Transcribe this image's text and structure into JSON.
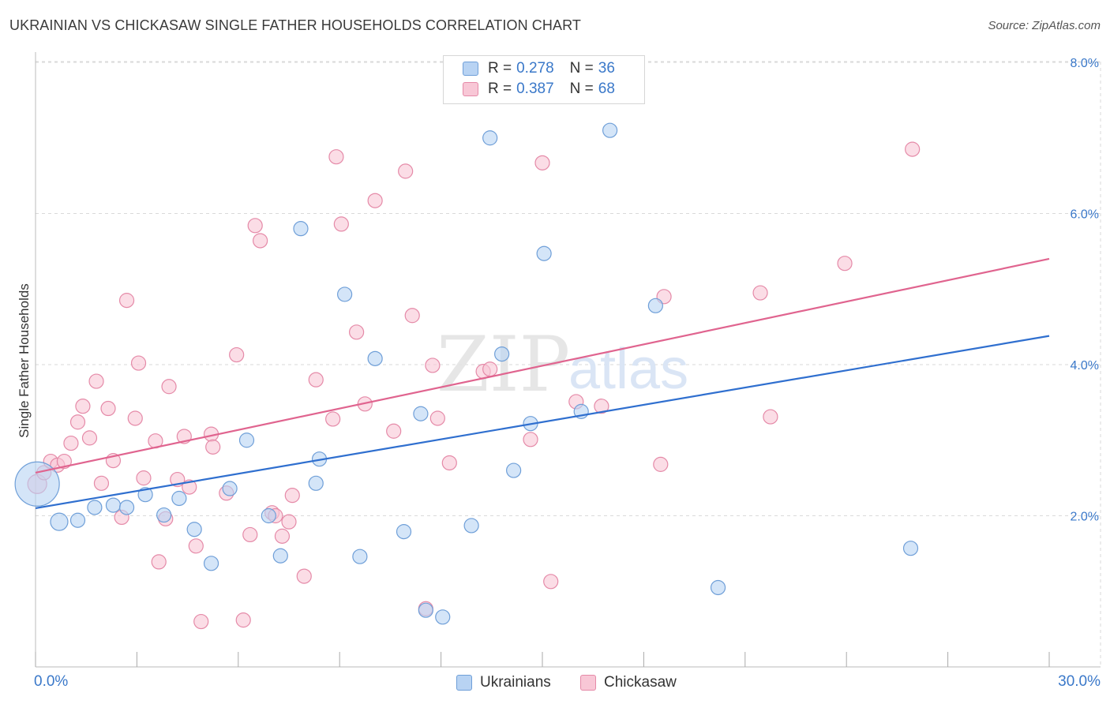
{
  "title": "UKRAINIAN VS CHICKASAW SINGLE FATHER HOUSEHOLDS CORRELATION CHART",
  "source": "Source: ZipAtlas.com",
  "legend_top": [
    {
      "r_label": "R =",
      "r_value": "0.278",
      "n_label": "N =",
      "n_value": "36"
    },
    {
      "r_label": "R =",
      "r_value": "0.387",
      "n_label": "N =",
      "n_value": "68"
    }
  ],
  "legend_bottom": [
    "Ukrainians",
    "Chickasaw"
  ],
  "colors": {
    "ukrainians_fill": "#b8d3f3",
    "ukrainians_stroke": "#6f9fd8",
    "ukrainians_line": "#2f6fcf",
    "chickasaw_fill": "#f8c7d6",
    "chickasaw_stroke": "#e58aa8",
    "chickasaw_line": "#e0648f",
    "axis_text": "#3a78c9",
    "grid": "#d9d9d9"
  },
  "chart_data": {
    "type": "scatter",
    "title": "UKRAINIAN VS CHICKASAW SINGLE FATHER HOUSEHOLDS CORRELATION CHART",
    "xlabel": "",
    "ylabel": "Single Father Households",
    "xlim": [
      0,
      30
    ],
    "ylim": [
      0,
      8.2
    ],
    "x_tick_labels": [
      "0.0%",
      "30.0%"
    ],
    "y_ticks": [
      2,
      4,
      6,
      8
    ],
    "y_tick_labels": [
      "2.0%",
      "4.0%",
      "6.0%",
      "8.0%"
    ],
    "grid": true,
    "legend_position": "top-center",
    "watermark": "ZIPatlas",
    "series": [
      {
        "name": "Ukrainians",
        "r": 0.278,
        "n": 36,
        "trend": {
          "x": [
            0,
            30
          ],
          "y": [
            2.1,
            4.38
          ]
        },
        "points": [
          [
            0.05,
            2.42,
            28
          ],
          [
            0.7,
            1.92,
            11
          ],
          [
            1.25,
            1.94,
            9
          ],
          [
            1.75,
            2.11,
            9
          ],
          [
            2.3,
            2.14,
            9
          ],
          [
            2.7,
            2.11,
            9
          ],
          [
            3.25,
            2.28,
            9
          ],
          [
            3.8,
            2.01,
            9
          ],
          [
            4.25,
            2.23,
            9
          ],
          [
            4.7,
            1.82,
            9
          ],
          [
            5.2,
            1.37,
            9
          ],
          [
            5.75,
            2.36,
            9
          ],
          [
            6.25,
            3.0,
            9
          ],
          [
            6.9,
            2.0,
            9
          ],
          [
            7.25,
            1.47,
            9
          ],
          [
            7.85,
            5.8,
            9
          ],
          [
            8.3,
            2.43,
            9
          ],
          [
            8.4,
            2.75,
            9
          ],
          [
            9.15,
            4.93,
            9
          ],
          [
            9.6,
            1.46,
            9
          ],
          [
            10.05,
            4.08,
            9
          ],
          [
            10.9,
            1.79,
            9
          ],
          [
            11.4,
            3.35,
            9
          ],
          [
            11.55,
            0.75,
            9
          ],
          [
            12.05,
            0.66,
            9
          ],
          [
            12.9,
            1.87,
            9
          ],
          [
            13.45,
            7.0,
            9
          ],
          [
            13.8,
            4.14,
            9
          ],
          [
            14.15,
            2.6,
            9
          ],
          [
            14.65,
            3.22,
            9
          ],
          [
            15.05,
            5.47,
            9
          ],
          [
            16.15,
            3.38,
            9
          ],
          [
            17.0,
            7.1,
            9
          ],
          [
            18.35,
            4.78,
            9
          ],
          [
            20.2,
            1.05,
            9
          ],
          [
            25.9,
            1.57,
            9
          ]
        ]
      },
      {
        "name": "Chickasaw",
        "r": 0.387,
        "n": 68,
        "trend": {
          "x": [
            0,
            30
          ],
          "y": [
            2.57,
            5.4
          ]
        },
        "points": [
          [
            0.05,
            2.42,
            12
          ],
          [
            0.25,
            2.57,
            9
          ],
          [
            0.45,
            2.72,
            9
          ],
          [
            0.65,
            2.67,
            9
          ],
          [
            0.85,
            2.72,
            9
          ],
          [
            1.05,
            2.96,
            9
          ],
          [
            1.25,
            3.24,
            9
          ],
          [
            1.4,
            3.45,
            9
          ],
          [
            1.6,
            3.03,
            9
          ],
          [
            1.8,
            3.78,
            9
          ],
          [
            1.95,
            2.43,
            9
          ],
          [
            2.15,
            3.42,
            9
          ],
          [
            2.3,
            2.73,
            9
          ],
          [
            2.55,
            1.98,
            9
          ],
          [
            2.7,
            4.85,
            9
          ],
          [
            2.95,
            3.29,
            9
          ],
          [
            3.05,
            4.02,
            9
          ],
          [
            3.2,
            2.5,
            9
          ],
          [
            3.55,
            2.99,
            9
          ],
          [
            3.65,
            1.39,
            9
          ],
          [
            3.85,
            1.96,
            9
          ],
          [
            3.95,
            3.71,
            9
          ],
          [
            4.2,
            2.48,
            9
          ],
          [
            4.4,
            3.05,
            9
          ],
          [
            4.55,
            2.38,
            9
          ],
          [
            4.75,
            1.6,
            9
          ],
          [
            4.9,
            0.6,
            9
          ],
          [
            5.2,
            3.08,
            9
          ],
          [
            5.25,
            2.91,
            9
          ],
          [
            5.65,
            2.3,
            9
          ],
          [
            5.95,
            4.13,
            9
          ],
          [
            6.15,
            0.62,
            9
          ],
          [
            6.35,
            1.75,
            9
          ],
          [
            6.5,
            5.84,
            9
          ],
          [
            6.65,
            5.64,
            9
          ],
          [
            7.0,
            2.04,
            9
          ],
          [
            7.1,
            2.0,
            9
          ],
          [
            7.3,
            1.73,
            9
          ],
          [
            7.5,
            1.92,
            9
          ],
          [
            7.6,
            2.27,
            9
          ],
          [
            7.95,
            1.2,
            9
          ],
          [
            8.3,
            3.8,
            9
          ],
          [
            8.8,
            3.28,
            9
          ],
          [
            8.9,
            6.75,
            9
          ],
          [
            9.05,
            5.86,
            9
          ],
          [
            9.5,
            4.43,
            9
          ],
          [
            9.75,
            3.48,
            9
          ],
          [
            10.05,
            6.17,
            9
          ],
          [
            10.6,
            3.12,
            9
          ],
          [
            10.95,
            6.56,
            9
          ],
          [
            11.15,
            4.65,
            9
          ],
          [
            11.55,
            0.77,
            9
          ],
          [
            11.75,
            3.99,
            9
          ],
          [
            11.9,
            3.29,
            9
          ],
          [
            12.25,
            2.7,
            9
          ],
          [
            13.25,
            3.91,
            9
          ],
          [
            13.45,
            3.94,
            9
          ],
          [
            14.65,
            3.01,
            9
          ],
          [
            15.0,
            6.67,
            9
          ],
          [
            15.25,
            1.13,
            9
          ],
          [
            16.0,
            3.51,
            9
          ],
          [
            16.75,
            3.45,
            9
          ],
          [
            18.5,
            2.68,
            9
          ],
          [
            18.6,
            4.9,
            9
          ],
          [
            21.45,
            4.95,
            9
          ],
          [
            21.75,
            3.31,
            9
          ],
          [
            23.95,
            5.34,
            9
          ],
          [
            25.95,
            6.85,
            9
          ]
        ]
      }
    ]
  }
}
